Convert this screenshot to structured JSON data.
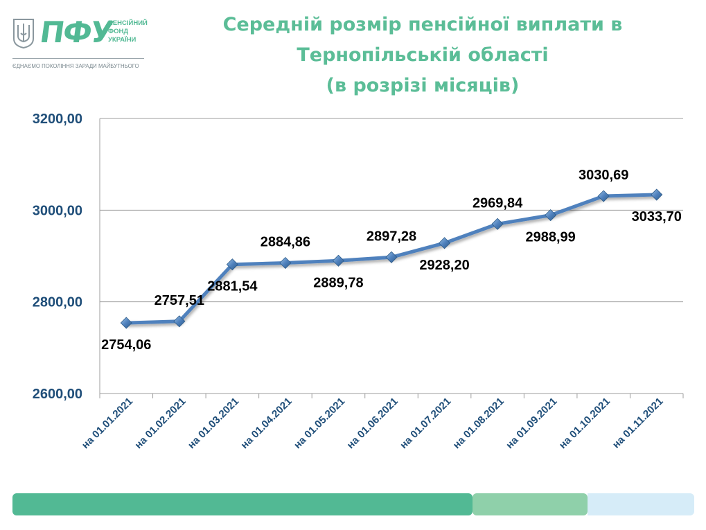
{
  "logo": {
    "abbr": "ПФУ",
    "name_lines": [
      "ПЕНСІЙНИЙ",
      "ФОНД",
      "УКРАЇНИ"
    ],
    "slogan": "ЄДНАЄМО ПОКОЛІННЯ ЗАРАДИ МАЙБУТНЬОГО",
    "emblem_icon": "trident-coat-of-arms-icon"
  },
  "title_lines": [
    "Середній розмір пенсійної виплати в",
    "Тернопільській області",
    "(в розрізі місяців)"
  ],
  "colors": {
    "brand_green": "#52b994",
    "title_green": "#5bbd97",
    "line": "#4f81bd",
    "axis_text": "#1f4e79",
    "grid": "#9c9c9c",
    "footer": [
      "#52b994",
      "#8fd0aa",
      "#d6ecf8"
    ]
  },
  "chart_data": {
    "type": "line",
    "title": "Середній розмір пенсійної виплати в Тернопільській області (в розрізі місяців)",
    "categories": [
      "на 01.01.2021",
      "на 01.02.2021",
      "на 01.03.2021",
      "на 01.04.2021",
      "на 01.05.2021",
      "на 01.06.2021",
      "на 01.07.2021",
      "на 01.08.2021",
      "на 01.09.2021",
      "на 01.10.2021",
      "на 01.11.2021"
    ],
    "series": [
      {
        "values": [
          2754.06,
          2757.51,
          2881.54,
          2884.86,
          2889.78,
          2897.28,
          2928.2,
          2969.84,
          2988.99,
          3030.69,
          3033.7
        ]
      }
    ],
    "data_labels": [
      "2754,06",
      "2757,51",
      "2881,54",
      "2884,86",
      "2889,78",
      "2897,28",
      "2928,20",
      "2969,84",
      "2988,99",
      "3030,69",
      "3033,70"
    ],
    "label_positions": [
      "below",
      "above",
      "below",
      "above",
      "below",
      "above",
      "below",
      "above",
      "below",
      "above",
      "below"
    ],
    "ylim": [
      2600,
      3200
    ],
    "yticks": [
      2600,
      2800,
      3000,
      3200
    ],
    "ytick_labels": [
      "2600,00",
      "2800,00",
      "3000,00",
      "3200,00"
    ],
    "grid": true,
    "legend": "none",
    "marker": "diamond"
  }
}
